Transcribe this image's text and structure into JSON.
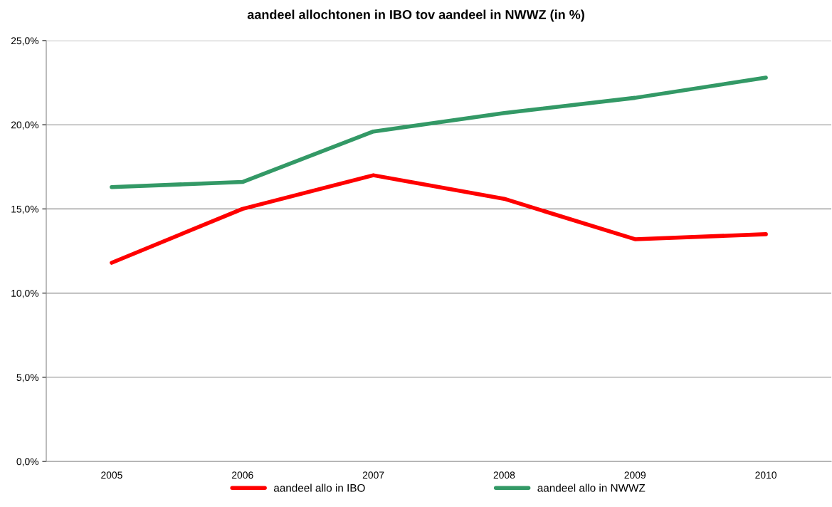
{
  "chart_data": {
    "type": "line",
    "title": "aandeel allochtonen in IBO tov aandeel in NWWZ (in %)",
    "categories": [
      "2005",
      "2006",
      "2007",
      "2008",
      "2009",
      "2010"
    ],
    "series": [
      {
        "name": "aandeel allo in IBO",
        "color": "#ff0000",
        "values": [
          11.8,
          15.0,
          17.0,
          15.6,
          13.2,
          13.5
        ]
      },
      {
        "name": "aandeel allo in NWWZ",
        "color": "#339966",
        "values": [
          16.3,
          16.6,
          19.6,
          20.7,
          21.6,
          22.8
        ]
      }
    ],
    "ylim": [
      0,
      25
    ],
    "yticks": [
      {
        "value": 0,
        "label": "0,0%"
      },
      {
        "value": 5,
        "label": "5,0%"
      },
      {
        "value": 10,
        "label": "10,0%"
      },
      {
        "value": 15,
        "label": "15,0%"
      },
      {
        "value": 20,
        "label": "20,0%"
      },
      {
        "value": 25,
        "label": "25,0%"
      }
    ],
    "grid": "y",
    "legend": "bottom",
    "marker": "none",
    "line_style": "solid"
  }
}
